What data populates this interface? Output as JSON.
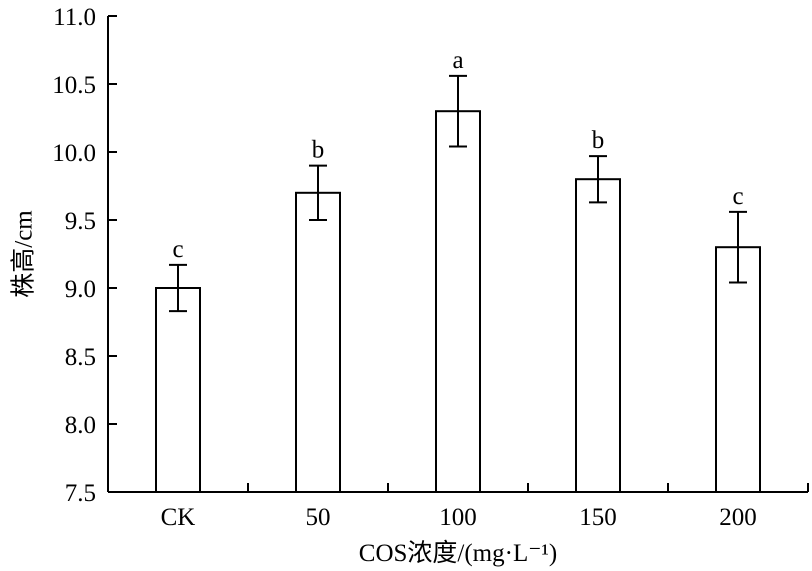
{
  "chart_data": {
    "type": "bar",
    "title": "",
    "xlabel": "COS浓度/(mg·L⁻¹)",
    "ylabel": "株高/cm",
    "categories": [
      "CK",
      "50",
      "100",
      "150",
      "200"
    ],
    "values": [
      9.0,
      9.7,
      10.3,
      9.8,
      9.3
    ],
    "errors": [
      0.17,
      0.2,
      0.26,
      0.17,
      0.26
    ],
    "significance": [
      "c",
      "b",
      "a",
      "b",
      "c"
    ],
    "ylim": [
      7.5,
      11.0
    ],
    "yticks": [
      "7.5",
      "8.0",
      "8.5",
      "9.0",
      "9.5",
      "10.0",
      "10.5",
      "11.0"
    ],
    "grid": false,
    "colors": {
      "bar_fill": "#ffffff",
      "bar_stroke": "#000000"
    }
  }
}
